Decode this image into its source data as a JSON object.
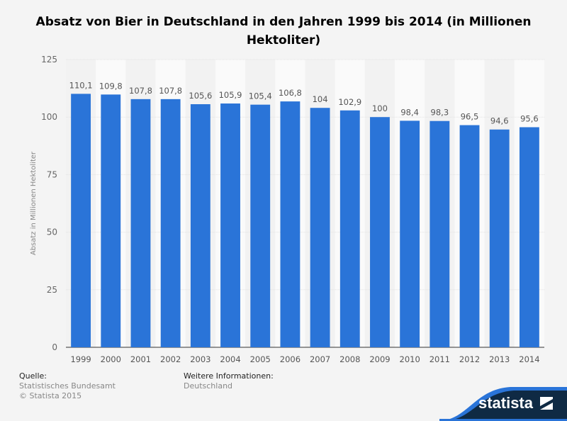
{
  "chart_data": {
    "type": "bar",
    "title": "Absatz von Bier in Deutschland in den Jahren 1999 bis 2014 (in Millionen Hektoliter)",
    "xlabel": "",
    "ylabel": "Absatz in Millionen Hektoliter",
    "ylim": [
      0,
      125
    ],
    "yticks": [
      0,
      25,
      50,
      75,
      100,
      125
    ],
    "categories": [
      "1999",
      "2000",
      "2001",
      "2002",
      "2003",
      "2004",
      "2005",
      "2006",
      "2007",
      "2008",
      "2009",
      "2010",
      "2011",
      "2012",
      "2013",
      "2014"
    ],
    "values": [
      110.1,
      109.8,
      107.8,
      107.8,
      105.6,
      105.9,
      105.4,
      106.8,
      104,
      102.9,
      100,
      98.4,
      98.3,
      96.5,
      94.6,
      95.6
    ],
    "labels": [
      "110,1",
      "109,8",
      "107,8",
      "107,8",
      "105,6",
      "105,9",
      "105,4",
      "106,8",
      "104",
      "102,9",
      "100",
      "98,4",
      "98,3",
      "96,5",
      "94,6",
      "95,6"
    ],
    "bar_color": "#2a74d8",
    "grid": true
  },
  "footer": {
    "source_label": "Quelle:",
    "source": "Statistisches Bundesamt",
    "copyright": "© Statista 2015",
    "info_label": "Weitere Informationen:",
    "info": "Deutschland",
    "logo": "statista"
  }
}
